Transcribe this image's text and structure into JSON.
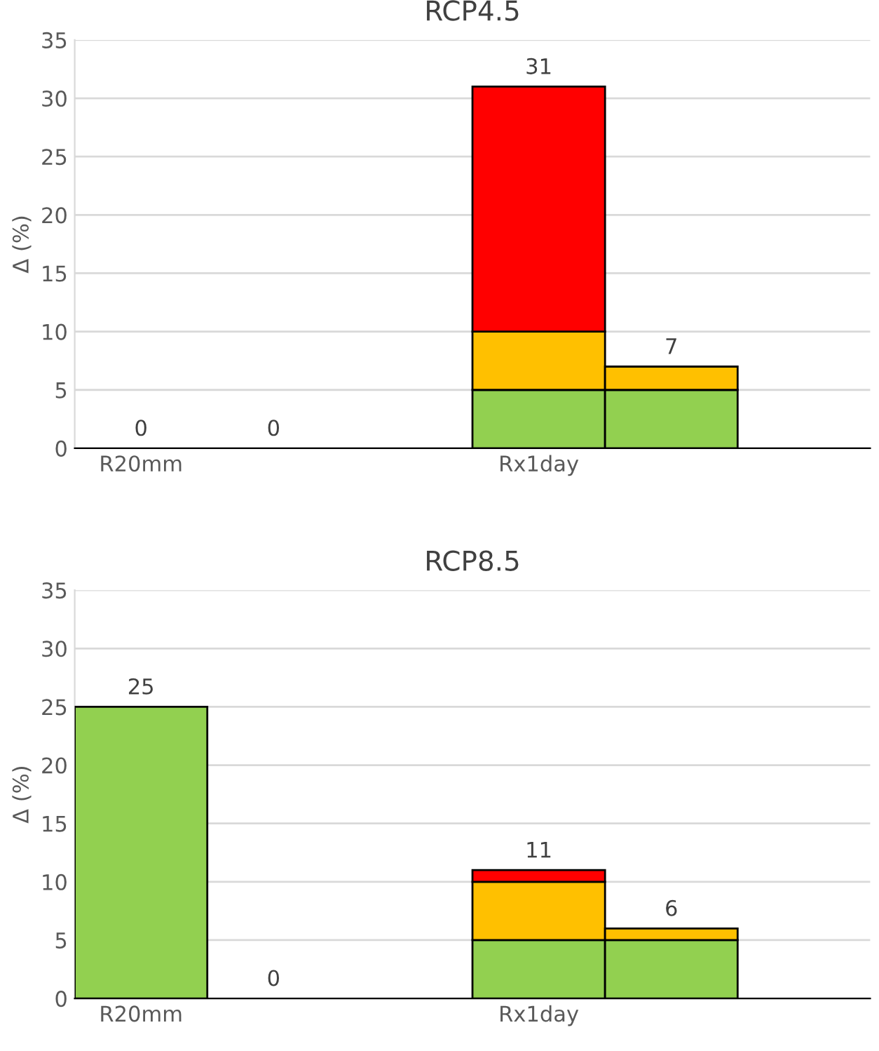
{
  "chart_data": [
    {
      "type": "bar",
      "title": "RCP4.5",
      "ylabel": "Δ (%)",
      "categories": [
        "R20mm",
        null,
        null,
        "Rx1day",
        null,
        null
      ],
      "stacked": true,
      "ylim": [
        0,
        35
      ],
      "yticks": [
        0,
        5,
        10,
        15,
        20,
        25,
        30,
        35
      ],
      "grid": "y",
      "legend": false,
      "series": [
        {
          "color": "#92d050",
          "values": [
            0,
            0,
            null,
            5,
            5,
            null
          ]
        },
        {
          "color": "#ffc000",
          "values": [
            null,
            null,
            null,
            5,
            2,
            null
          ]
        },
        {
          "color": "#ff0000",
          "values": [
            null,
            null,
            null,
            21,
            null,
            null
          ]
        }
      ],
      "totals": [
        "0",
        "0",
        null,
        "31",
        "7",
        null
      ]
    },
    {
      "type": "bar",
      "title": "RCP8.5",
      "ylabel": "Δ (%)",
      "categories": [
        "R20mm",
        null,
        null,
        "Rx1day",
        null,
        null
      ],
      "stacked": true,
      "ylim": [
        0,
        35
      ],
      "yticks": [
        0,
        5,
        10,
        15,
        20,
        25,
        30,
        35
      ],
      "grid": "y",
      "legend": false,
      "series": [
        {
          "color": "#92d050",
          "values": [
            25,
            0,
            null,
            5,
            5,
            null
          ]
        },
        {
          "color": "#ffc000",
          "values": [
            null,
            null,
            null,
            5,
            1,
            null
          ]
        },
        {
          "color": "#ff0000",
          "values": [
            null,
            null,
            null,
            1,
            null,
            null
          ]
        }
      ],
      "totals": [
        "25",
        "0",
        null,
        "11",
        "6",
        null
      ]
    }
  ]
}
